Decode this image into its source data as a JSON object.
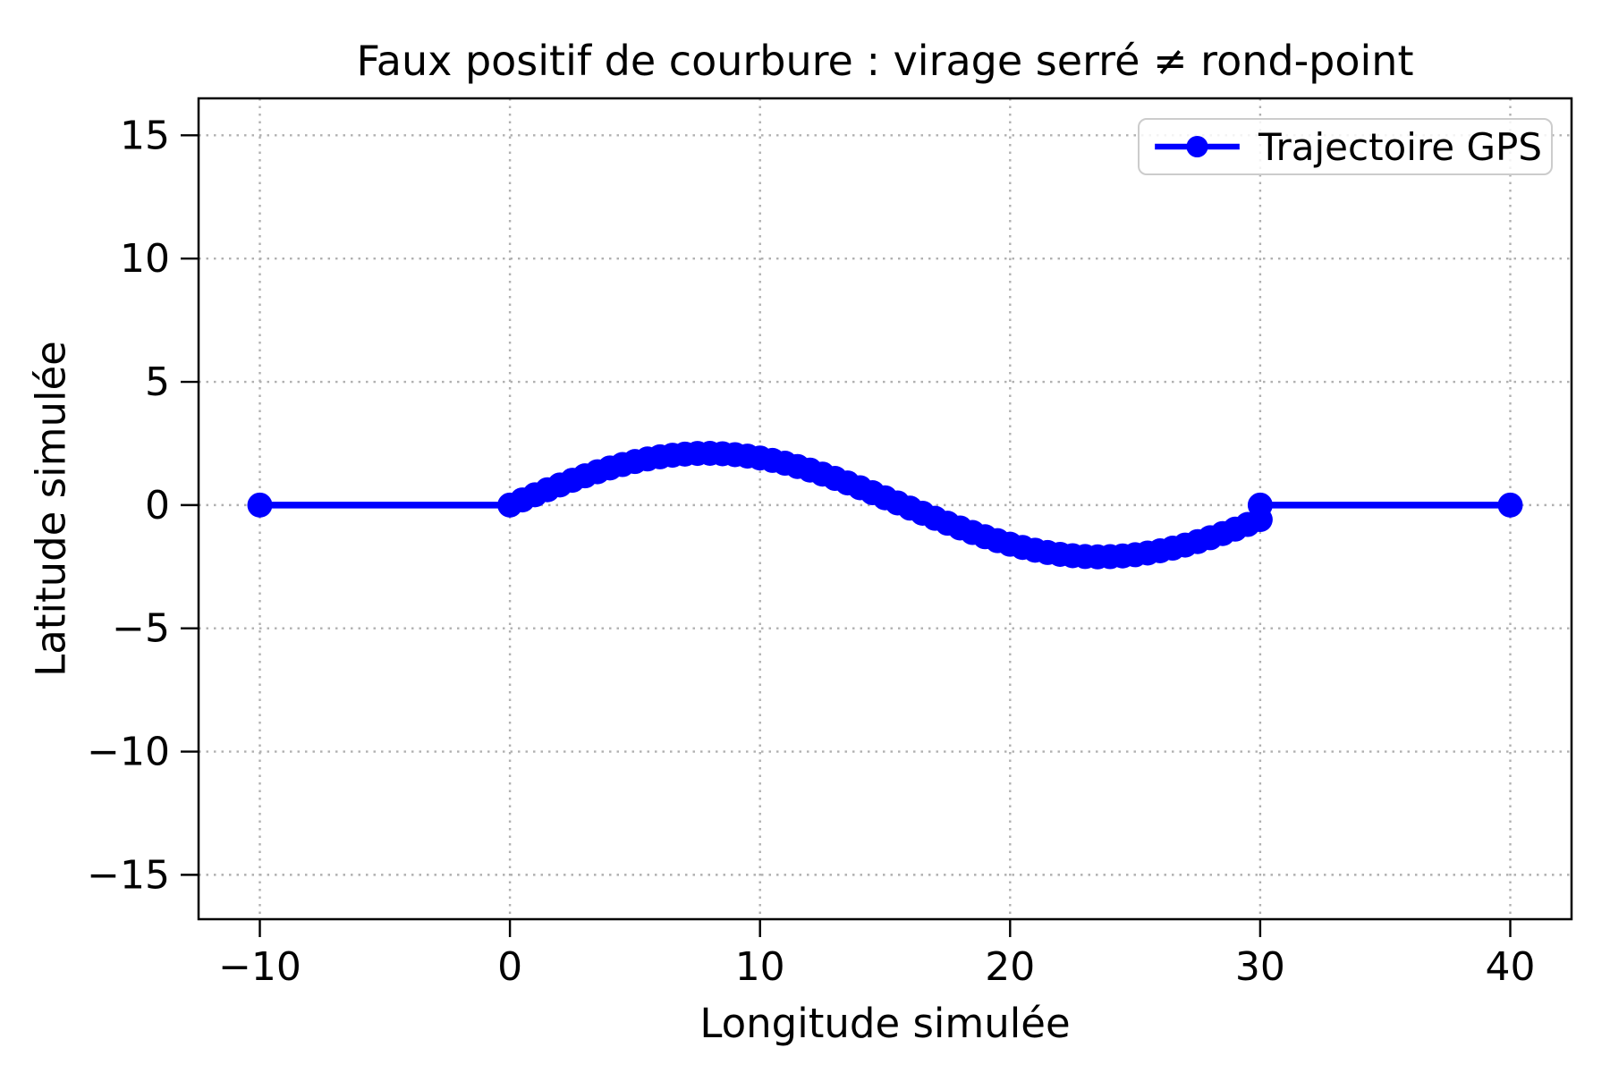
{
  "chart_data": {
    "type": "line",
    "title": "Faux positif de courbure : virage serré ≠ rond-point",
    "xlabel": "Longitude simulée",
    "ylabel": "Latitude simulée",
    "legend": [
      {
        "label": "Trajectoire GPS",
        "color": "#0000ff",
        "marker": "circle"
      }
    ],
    "legend_position": "upper right",
    "grid": "dotted",
    "xlim": [
      -12.45,
      42.45
    ],
    "ylim": [
      -16.8,
      16.5
    ],
    "xticks": [
      -10,
      0,
      10,
      20,
      30,
      40
    ],
    "xtick_labels": [
      "−10",
      "0",
      "10",
      "20",
      "30",
      "40"
    ],
    "yticks": [
      -15,
      -10,
      -5,
      0,
      5,
      10,
      15
    ],
    "ytick_labels": [
      "−15",
      "−10",
      "−5",
      "0",
      "5",
      "10",
      "15"
    ],
    "colors": {
      "line": "#0000ff",
      "grid": "#b0b0b0",
      "frame": "#000000",
      "legend_border": "#cccccc",
      "background": "#ffffff"
    },
    "series": [
      {
        "name": "Trajectoire GPS",
        "color": "#0000ff",
        "marker": "circle",
        "points": [
          [
            -10,
            0
          ],
          [
            0,
            0
          ],
          [
            0.5,
            0.21
          ],
          [
            1,
            0.417
          ],
          [
            1.5,
            0.621
          ],
          [
            2,
            0.818
          ],
          [
            2.5,
            1.007
          ],
          [
            3,
            1.186
          ],
          [
            3.5,
            1.353
          ],
          [
            4,
            1.507
          ],
          [
            4.5,
            1.645
          ],
          [
            5,
            1.767
          ],
          [
            5.5,
            1.872
          ],
          [
            6,
            1.957
          ],
          [
            6.5,
            2.023
          ],
          [
            7,
            2.069
          ],
          [
            7.5,
            2.095
          ],
          [
            8,
            2.099
          ],
          [
            8.5,
            2.083
          ],
          [
            9,
            2.045
          ],
          [
            9.5,
            1.987
          ],
          [
            10,
            1.91
          ],
          [
            10.5,
            1.813
          ],
          [
            11,
            1.698
          ],
          [
            11.5,
            1.566
          ],
          [
            12,
            1.419
          ],
          [
            12.5,
            1.257
          ],
          [
            13,
            1.083
          ],
          [
            13.5,
            0.898
          ],
          [
            14,
            0.703
          ],
          [
            14.5,
            0.502
          ],
          [
            15,
            0.296
          ],
          [
            15.5,
            0.087
          ],
          [
            16,
            -0.123
          ],
          [
            16.5,
            -0.331
          ],
          [
            17,
            -0.537
          ],
          [
            17.5,
            -0.737
          ],
          [
            18,
            -0.929
          ],
          [
            18.5,
            -1.113
          ],
          [
            19,
            -1.285
          ],
          [
            19.5,
            -1.444
          ],
          [
            20,
            -1.589
          ],
          [
            20.5,
            -1.718
          ],
          [
            21,
            -1.83
          ],
          [
            21.5,
            -1.924
          ],
          [
            22,
            -1.998
          ],
          [
            22.5,
            -2.053
          ],
          [
            23,
            -2.087
          ],
          [
            23.5,
            -2.1
          ],
          [
            24,
            -2.092
          ],
          [
            24.5,
            -2.063
          ],
          [
            25,
            -2.014
          ],
          [
            25.5,
            -1.944
          ],
          [
            26,
            -1.855
          ],
          [
            26.5,
            -1.748
          ],
          [
            27,
            -1.623
          ],
          [
            27.5,
            -1.482
          ],
          [
            28,
            -1.326
          ],
          [
            28.5,
            -1.156
          ],
          [
            29,
            -0.976
          ],
          [
            29.5,
            -0.785
          ],
          [
            30,
            -0.587
          ],
          [
            30,
            0
          ],
          [
            40,
            0
          ]
        ]
      }
    ]
  }
}
